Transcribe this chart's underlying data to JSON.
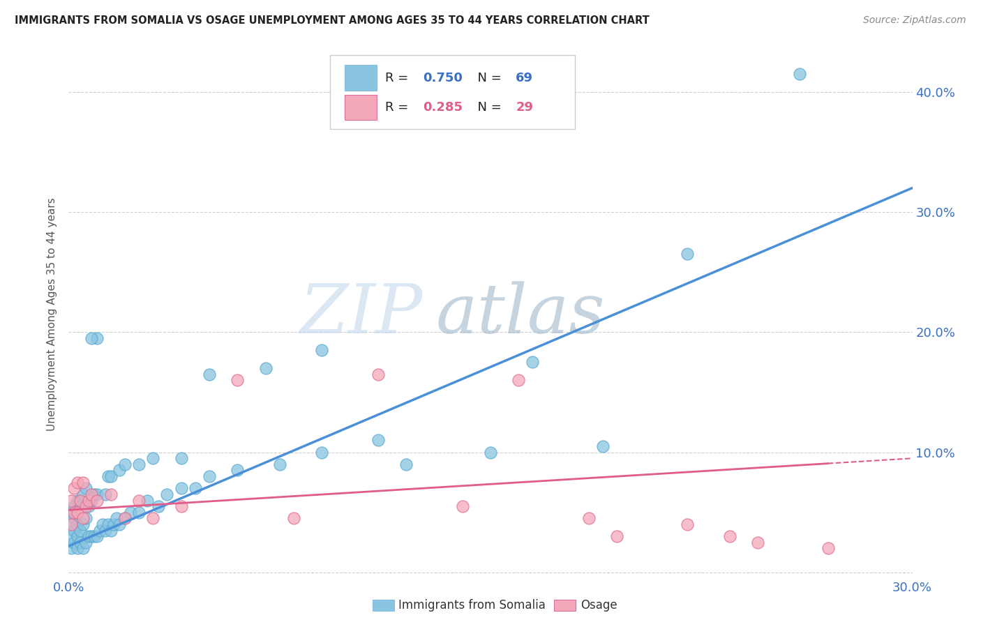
{
  "title": "IMMIGRANTS FROM SOMALIA VS OSAGE UNEMPLOYMENT AMONG AGES 35 TO 44 YEARS CORRELATION CHART",
  "source": "Source: ZipAtlas.com",
  "ylabel": "Unemployment Among Ages 35 to 44 years",
  "xlim": [
    0.0,
    0.3
  ],
  "ylim": [
    -0.005,
    0.435
  ],
  "xticks": [
    0.0,
    0.05,
    0.1,
    0.15,
    0.2,
    0.25,
    0.3
  ],
  "yticks": [
    0.0,
    0.1,
    0.2,
    0.3,
    0.4
  ],
  "color_somalia": "#89c4e1",
  "color_osage": "#f4a7b9",
  "color_line_somalia": "#4a90d9",
  "color_line_osage": "#e05c8a",
  "watermark_zip": "ZIP",
  "watermark_atlas": "atlas",
  "somalia_x": [
    0.001,
    0.001,
    0.001,
    0.001,
    0.002,
    0.002,
    0.002,
    0.002,
    0.003,
    0.003,
    0.003,
    0.003,
    0.004,
    0.004,
    0.004,
    0.005,
    0.005,
    0.005,
    0.006,
    0.006,
    0.006,
    0.007,
    0.007,
    0.008,
    0.008,
    0.009,
    0.009,
    0.01,
    0.01,
    0.011,
    0.012,
    0.013,
    0.014,
    0.015,
    0.016,
    0.017,
    0.018,
    0.02,
    0.022,
    0.025,
    0.028,
    0.032,
    0.035,
    0.04,
    0.045,
    0.05,
    0.06,
    0.075,
    0.09,
    0.11,
    0.013,
    0.014,
    0.015,
    0.018,
    0.02,
    0.025,
    0.03,
    0.04,
    0.05,
    0.07,
    0.09,
    0.12,
    0.15,
    0.165,
    0.19,
    0.22,
    0.26,
    0.01,
    0.008
  ],
  "somalia_y": [
    0.02,
    0.03,
    0.04,
    0.05,
    0.025,
    0.035,
    0.045,
    0.055,
    0.02,
    0.03,
    0.04,
    0.06,
    0.025,
    0.035,
    0.06,
    0.02,
    0.04,
    0.065,
    0.025,
    0.045,
    0.07,
    0.03,
    0.055,
    0.03,
    0.06,
    0.03,
    0.065,
    0.03,
    0.065,
    0.035,
    0.04,
    0.035,
    0.04,
    0.035,
    0.04,
    0.045,
    0.04,
    0.045,
    0.05,
    0.05,
    0.06,
    0.055,
    0.065,
    0.07,
    0.07,
    0.08,
    0.085,
    0.09,
    0.1,
    0.11,
    0.065,
    0.08,
    0.08,
    0.085,
    0.09,
    0.09,
    0.095,
    0.095,
    0.165,
    0.17,
    0.185,
    0.09,
    0.1,
    0.175,
    0.105,
    0.265,
    0.415,
    0.195,
    0.195
  ],
  "osage_x": [
    0.001,
    0.001,
    0.002,
    0.002,
    0.003,
    0.003,
    0.004,
    0.005,
    0.005,
    0.006,
    0.007,
    0.008,
    0.01,
    0.015,
    0.02,
    0.025,
    0.03,
    0.04,
    0.06,
    0.08,
    0.11,
    0.14,
    0.16,
    0.185,
    0.195,
    0.22,
    0.235,
    0.245,
    0.27
  ],
  "osage_y": [
    0.04,
    0.06,
    0.05,
    0.07,
    0.05,
    0.075,
    0.06,
    0.045,
    0.075,
    0.055,
    0.06,
    0.065,
    0.06,
    0.065,
    0.045,
    0.06,
    0.045,
    0.055,
    0.16,
    0.045,
    0.165,
    0.055,
    0.16,
    0.045,
    0.03,
    0.04,
    0.03,
    0.025,
    0.02
  ],
  "line_somalia_x0": 0.0,
  "line_somalia_y0": 0.022,
  "line_somalia_x1": 0.3,
  "line_somalia_y1": 0.32,
  "line_osage_x0": 0.0,
  "line_osage_y0": 0.052,
  "line_osage_x1": 0.3,
  "line_osage_y1": 0.095
}
